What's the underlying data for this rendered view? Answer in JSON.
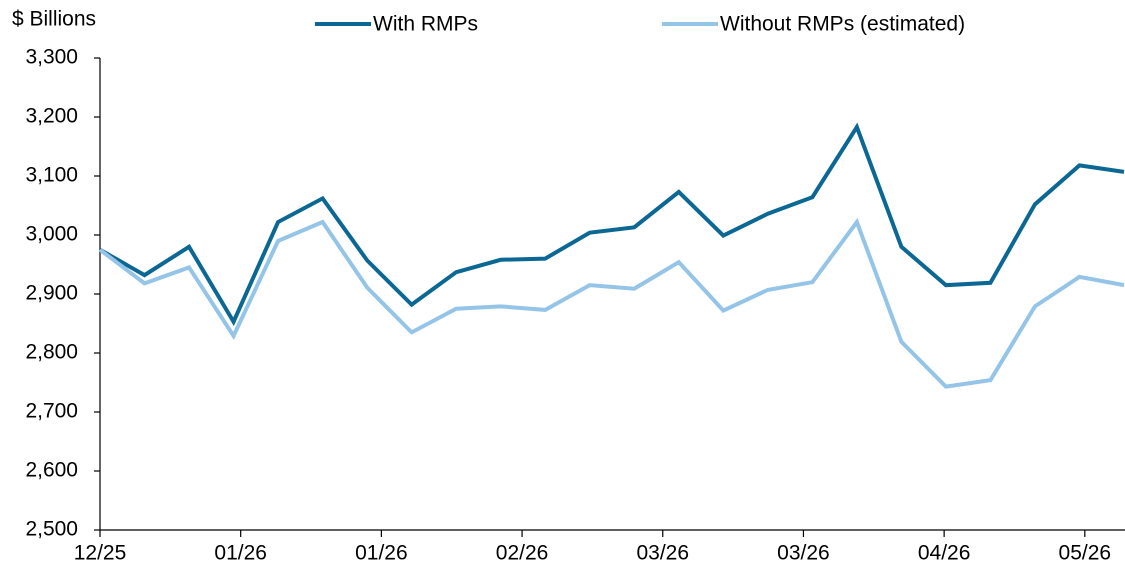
{
  "chart_data": {
    "type": "line",
    "y_label": "$ Billions",
    "x": [
      0,
      1,
      2,
      3,
      4,
      5,
      6,
      7,
      8,
      9,
      10,
      11,
      12,
      13,
      14,
      15,
      16,
      17,
      18,
      19,
      20,
      21,
      22,
      23
    ],
    "series": [
      {
        "name": "With RMPs",
        "color": "#0b6793",
        "values": [
          2975,
          2932,
          2980,
          2853,
          3022,
          3062,
          2957,
          2882,
          2937,
          2958,
          2960,
          3004,
          3013,
          3073,
          2999,
          3036,
          3064,
          3183,
          2980,
          2915,
          2919,
          3052,
          3118,
          3107
        ]
      },
      {
        "name": "Without RMPs (estimated)",
        "color": "#94c4e8",
        "values": [
          2975,
          2918,
          2945,
          2829,
          2990,
          3022,
          2911,
          2835,
          2875,
          2879,
          2873,
          2915,
          2909,
          2954,
          2872,
          2907,
          2920,
          3022,
          2819,
          2743,
          2754,
          2879,
          2929,
          2915
        ]
      }
    ],
    "xlim": [
      0,
      23
    ],
    "xticks": [
      {
        "value": 0,
        "label": "12/25"
      },
      {
        "value": 3.16,
        "label": "01/26"
      },
      {
        "value": 6.32,
        "label": "01/26"
      },
      {
        "value": 9.48,
        "label": "02/26"
      },
      {
        "value": 12.64,
        "label": "03/26"
      },
      {
        "value": 15.8,
        "label": "03/26"
      },
      {
        "value": 18.96,
        "label": "04/26"
      },
      {
        "value": 22.12,
        "label": "05/26"
      }
    ],
    "ylim": [
      2500,
      3300
    ],
    "yticks": [
      {
        "value": 2500,
        "label": "2,500"
      },
      {
        "value": 2600,
        "label": "2,600"
      },
      {
        "value": 2700,
        "label": "2,700"
      },
      {
        "value": 2800,
        "label": "2,800"
      },
      {
        "value": 2900,
        "label": "2,900"
      },
      {
        "value": 3000,
        "label": "3,000"
      },
      {
        "value": 3100,
        "label": "3,100"
      },
      {
        "value": 3200,
        "label": "3,200"
      },
      {
        "value": 3300,
        "label": "3,300"
      }
    ],
    "legend": "top"
  }
}
